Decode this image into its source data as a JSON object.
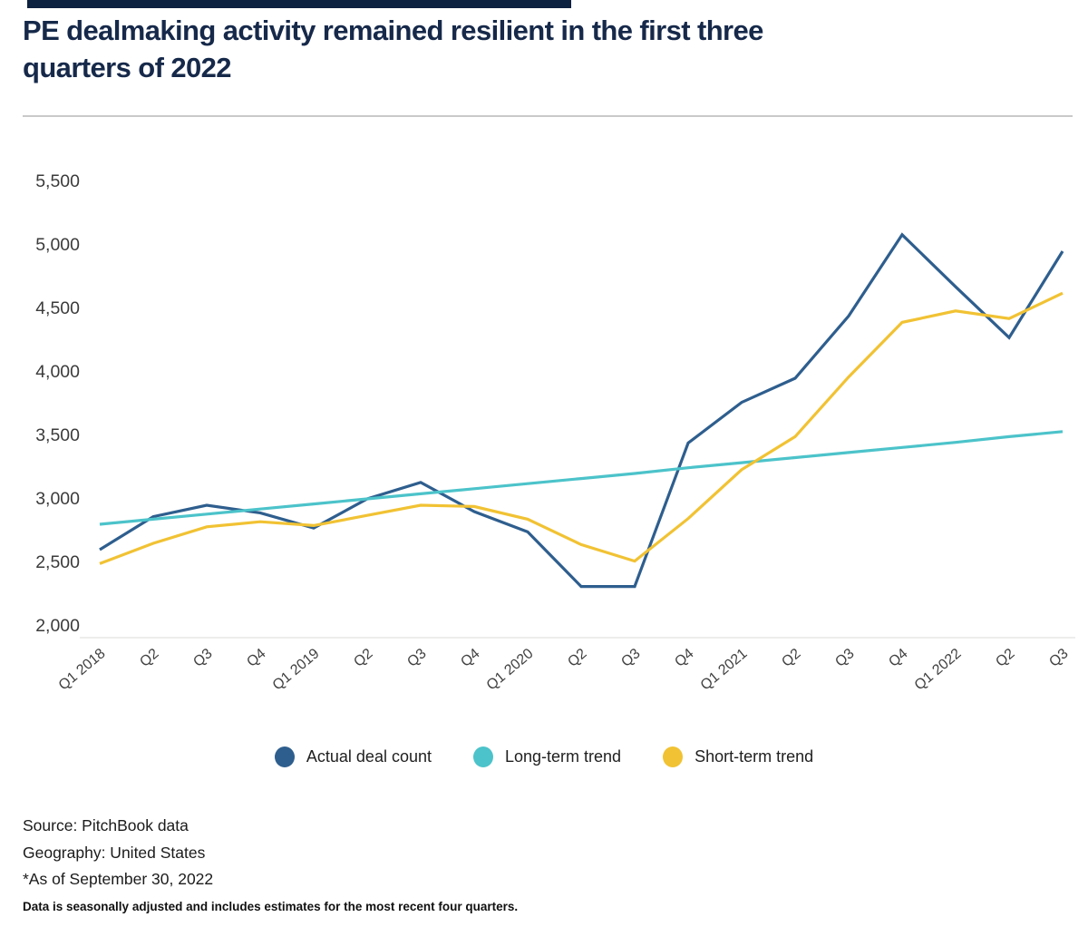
{
  "header": {
    "title_lines": [
      "PE dealmaking activity remained resilient in the first three",
      "quarters of 2022"
    ]
  },
  "chart_data": {
    "type": "line",
    "title": "PE dealmaking activity remained resilient in the first three quarters of 2022",
    "xlabel": "",
    "ylabel": "",
    "ylim": [
      2000,
      5500
    ],
    "grid": false,
    "legend_position": "bottom",
    "y_tick_labels": [
      "5,500",
      "5,000",
      "4,500",
      "4,000",
      "3,500",
      "3,000",
      "2,500",
      "2,000"
    ],
    "categories": [
      "Q1 2018",
      "Q2",
      "Q3",
      "Q4",
      "Q1 2019",
      "Q2",
      "Q3",
      "Q4",
      "Q1 2020",
      "Q2",
      "Q3",
      "Q4",
      "Q1 2021",
      "Q2",
      "Q3",
      "Q4",
      "Q1 2022",
      "Q2",
      "Q3"
    ],
    "series": [
      {
        "name": "Actual deal count",
        "color": "#2e5e8e",
        "values": [
          2600,
          2860,
          2950,
          2890,
          2770,
          3000,
          3130,
          2900,
          2740,
          2310,
          2310,
          3440,
          3760,
          3950,
          4440,
          5080,
          4670,
          4270,
          4950
        ]
      },
      {
        "name": "Long-term trend",
        "color": "#4cc3ca",
        "values": [
          2800,
          2840,
          2880,
          2920,
          2960,
          3000,
          3040,
          3080,
          3120,
          3160,
          3200,
          3245,
          3285,
          3325,
          3365,
          3405,
          3445,
          3490,
          3530
        ]
      },
      {
        "name": "Short-term trend",
        "color": "#f1c233",
        "values": [
          2490,
          2650,
          2780,
          2820,
          2790,
          2870,
          2950,
          2940,
          2840,
          2640,
          2510,
          2845,
          3230,
          3490,
          3960,
          4390,
          4480,
          4420,
          4620
        ]
      }
    ]
  },
  "footer": {
    "source": "Source: PitchBook data",
    "geography": "Geography: United States",
    "as_of": "*As of September 30, 2022",
    "note": "Data is seasonally adjusted and includes estimates for the most recent four quarters."
  }
}
